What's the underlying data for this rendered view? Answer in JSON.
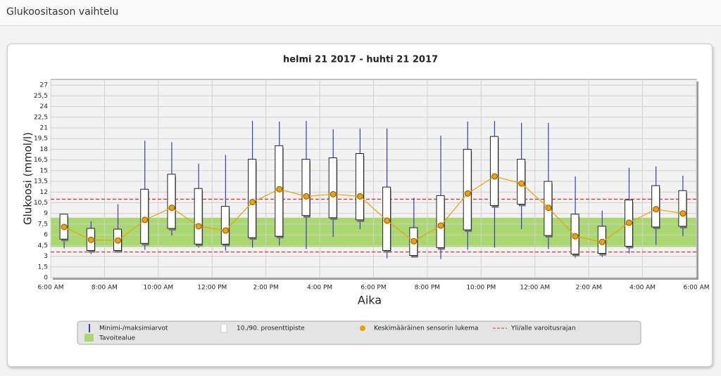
{
  "header": {
    "title": "Glukoositason vaihtelu"
  },
  "chart_data": {
    "type": "box",
    "title": "helmi 21 2017 - huhti 21 2017",
    "x_label": "Aika",
    "y_label": "Glukoosi (mmol/l)",
    "grid": true,
    "x": [
      6.5,
      7.5,
      8.5,
      9.5,
      10.5,
      11.5,
      12.5,
      13.5,
      14.5,
      15.5,
      16.5,
      17.5,
      18.5,
      19.5,
      20.5,
      21.5,
      22.5,
      23.5,
      24.5,
      25.5,
      26.5,
      27.5,
      28.5,
      29.5
    ],
    "xlim": [
      6,
      30
    ],
    "xticks": [
      {
        "value": 6,
        "label": "6:00 AM"
      },
      {
        "value": 8,
        "label": "8:00 AM"
      },
      {
        "value": 10,
        "label": "10:00 AM"
      },
      {
        "value": 12,
        "label": "12:00 PM"
      },
      {
        "value": 14,
        "label": "2:00 PM"
      },
      {
        "value": 16,
        "label": "4:00 PM"
      },
      {
        "value": 18,
        "label": "6:00 PM"
      },
      {
        "value": 20,
        "label": "8:00 PM"
      },
      {
        "value": 22,
        "label": "10:00 PM"
      },
      {
        "value": 24,
        "label": "12:00 AM"
      },
      {
        "value": 26,
        "label": "2:00 AM"
      },
      {
        "value": 28,
        "label": "4:00 AM"
      },
      {
        "value": 30,
        "label": "6:00 AM"
      }
    ],
    "ylim": [
      0,
      27.8
    ],
    "yticks": [
      0,
      {
        "value": 1.5,
        "label": "1,5"
      },
      3,
      {
        "value": 4.5,
        "label": "4,5"
      },
      6,
      {
        "value": 7.5,
        "label": "7,5"
      },
      9,
      {
        "value": 10.5,
        "label": "10,5"
      },
      12,
      {
        "value": 13.5,
        "label": "13,5"
      },
      15,
      {
        "value": 16.5,
        "label": "16,5"
      },
      18,
      {
        "value": 19.5,
        "label": "19,5"
      },
      21,
      {
        "value": 22.5,
        "label": "22,5"
      },
      24,
      {
        "value": 25.5,
        "label": "25,5"
      },
      27
    ],
    "range": {
      "name": "Minimi-/maksimiarvot",
      "color": "#3a3acc",
      "min": [
        4.1,
        3.3,
        3.6,
        3.9,
        5.9,
        4.2,
        3.8,
        4.2,
        4.5,
        4.0,
        5.7,
        6.8,
        2.7,
        3.0,
        2.6,
        3.9,
        4.2,
        6.8,
        4.0,
        2.8,
        2.9,
        3.4,
        4.6,
        5.8
      ],
      "max": [
        5.7,
        7.9,
        10.3,
        19.2,
        19.0,
        16.0,
        17.2,
        22.0,
        21.9,
        22.0,
        20.8,
        20.9,
        20.9,
        11.2,
        19.9,
        21.9,
        22.0,
        21.7,
        21.7,
        14.2,
        9.4,
        15.4,
        15.6,
        14.3
      ]
    },
    "percentile": {
      "name": "10./90. prosenttipiste",
      "color": "#ffffff",
      "p10": [
        5.4,
        3.8,
        3.8,
        4.8,
        6.9,
        4.7,
        4.7,
        5.6,
        5.8,
        8.7,
        8.4,
        8.1,
        3.8,
        3.1,
        4.2,
        6.7,
        10.1,
        10.3,
        5.9,
        3.3,
        3.4,
        4.4,
        7.1,
        7.2
      ],
      "p90": [
        8.9,
        6.9,
        6.8,
        12.4,
        14.5,
        12.5,
        10.0,
        16.6,
        18.5,
        16.6,
        16.8,
        17.4,
        12.7,
        7.0,
        11.5,
        18.0,
        19.8,
        16.6,
        13.5,
        8.9,
        7.2,
        10.9,
        12.9,
        12.2
      ]
    },
    "mean": {
      "name": "Keskimääräinen sensorin lukema",
      "color": "#f0a000",
      "values": [
        7.1,
        5.3,
        5.2,
        8.1,
        9.8,
        7.2,
        6.6,
        10.6,
        12.4,
        11.4,
        11.7,
        11.4,
        8.0,
        5.1,
        7.3,
        11.8,
        14.2,
        13.2,
        9.8,
        5.8,
        5.0,
        7.7,
        9.6,
        9.0
      ]
    },
    "limits": {
      "name": "Yli/alle varoitusrajan",
      "color": "#e03030",
      "values": [
        3.6,
        11.0
      ]
    },
    "target": {
      "name": "Tavoitealue",
      "color": "#a8d86e",
      "range": [
        4.3,
        8.4
      ]
    }
  }
}
